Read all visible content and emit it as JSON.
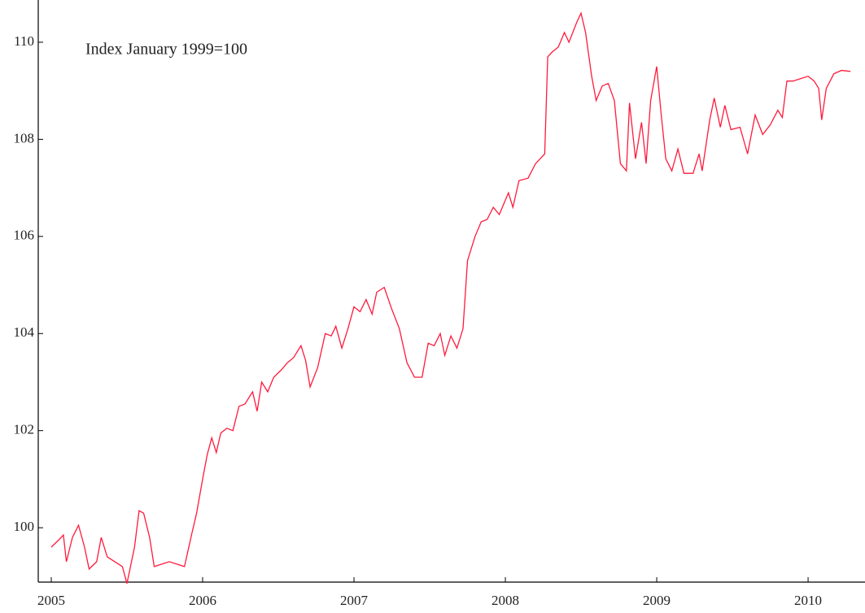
{
  "chart_data": {
    "type": "line",
    "annotation": "Index January 1999=100",
    "xlim": [
      2004.914,
      2010.376
    ],
    "xticks": [
      2005,
      2006,
      2007,
      2008,
      2009,
      2010
    ],
    "ylim": [
      98.88,
      110.87
    ],
    "yticks": [
      100,
      102,
      104,
      106,
      108,
      110
    ],
    "series": [
      {
        "color": "#ff1a3c",
        "x": [
          2005.0,
          2005.05,
          2005.08,
          2005.1,
          2005.14,
          2005.18,
          2005.22,
          2005.25,
          2005.3,
          2005.33,
          2005.37,
          2005.42,
          2005.47,
          2005.5,
          2005.55,
          2005.58,
          2005.61,
          2005.65,
          2005.68,
          2005.73,
          2005.78,
          2005.83,
          2005.88,
          2005.93,
          2005.96,
          2006.0,
          2006.03,
          2006.06,
          2006.09,
          2006.12,
          2006.16,
          2006.2,
          2006.24,
          2006.28,
          2006.33,
          2006.36,
          2006.39,
          2006.43,
          2006.47,
          2006.52,
          2006.56,
          2006.6,
          2006.65,
          2006.68,
          2006.71,
          2006.76,
          2006.81,
          2006.85,
          2006.88,
          2006.92,
          2006.96,
          2007.0,
          2007.04,
          2007.08,
          2007.12,
          2007.15,
          2007.2,
          2007.25,
          2007.3,
          2007.35,
          2007.4,
          2007.45,
          2007.49,
          2007.53,
          2007.57,
          2007.6,
          2007.64,
          2007.68,
          2007.72,
          2007.75,
          2007.8,
          2007.84,
          2007.88,
          2007.92,
          2007.96,
          2008.02,
          2008.05,
          2008.09,
          2008.15,
          2008.2,
          2008.26,
          2008.28,
          2008.31,
          2008.35,
          2008.39,
          2008.42,
          2008.47,
          2008.5,
          2008.53,
          2008.57,
          2008.6,
          2008.64,
          2008.68,
          2008.72,
          2008.76,
          2008.8,
          2008.82,
          2008.86,
          2008.9,
          2008.93,
          2008.96,
          2009.0,
          2009.03,
          2009.06,
          2009.1,
          2009.14,
          2009.18,
          2009.24,
          2009.28,
          2009.3,
          2009.35,
          2009.38,
          2009.42,
          2009.45,
          2009.49,
          2009.55,
          2009.6,
          2009.65,
          2009.7,
          2009.75,
          2009.8,
          2009.83,
          2009.86,
          2009.9,
          2009.95,
          2010.0,
          2010.04,
          2010.07,
          2010.09,
          2010.12,
          2010.17,
          2010.22,
          2010.28
        ],
        "values": [
          99.6,
          99.75,
          99.85,
          99.3,
          99.8,
          100.05,
          99.6,
          99.15,
          99.3,
          99.8,
          99.4,
          99.3,
          99.2,
          98.85,
          99.6,
          100.35,
          100.3,
          99.8,
          99.2,
          99.25,
          99.3,
          99.25,
          99.2,
          99.9,
          100.3,
          101.0,
          101.5,
          101.85,
          101.55,
          101.95,
          102.05,
          102.0,
          102.5,
          102.55,
          102.8,
          102.4,
          103.0,
          102.8,
          103.1,
          103.25,
          103.4,
          103.5,
          103.75,
          103.45,
          102.9,
          103.3,
          104.0,
          103.95,
          104.15,
          103.7,
          104.1,
          104.55,
          104.45,
          104.7,
          104.4,
          104.85,
          104.95,
          104.5,
          104.1,
          103.4,
          103.1,
          103.1,
          103.8,
          103.75,
          104.0,
          103.55,
          103.95,
          103.7,
          104.1,
          105.5,
          106.0,
          106.3,
          106.35,
          106.6,
          106.45,
          106.9,
          106.6,
          107.15,
          107.2,
          107.5,
          107.7,
          109.7,
          109.8,
          109.9,
          110.2,
          110.0,
          110.4,
          110.6,
          110.2,
          109.3,
          108.8,
          109.1,
          109.15,
          108.8,
          107.5,
          107.35,
          108.75,
          107.6,
          108.35,
          107.5,
          108.8,
          109.5,
          108.5,
          107.6,
          107.35,
          107.8,
          107.3,
          107.3,
          107.7,
          107.35,
          108.4,
          108.85,
          108.25,
          108.7,
          108.2,
          108.25,
          107.7,
          108.5,
          108.1,
          108.3,
          108.6,
          108.45,
          109.2,
          109.2,
          109.25,
          109.3,
          109.2,
          109.05,
          108.4,
          109.05,
          109.35,
          109.42,
          109.4
        ]
      }
    ]
  }
}
